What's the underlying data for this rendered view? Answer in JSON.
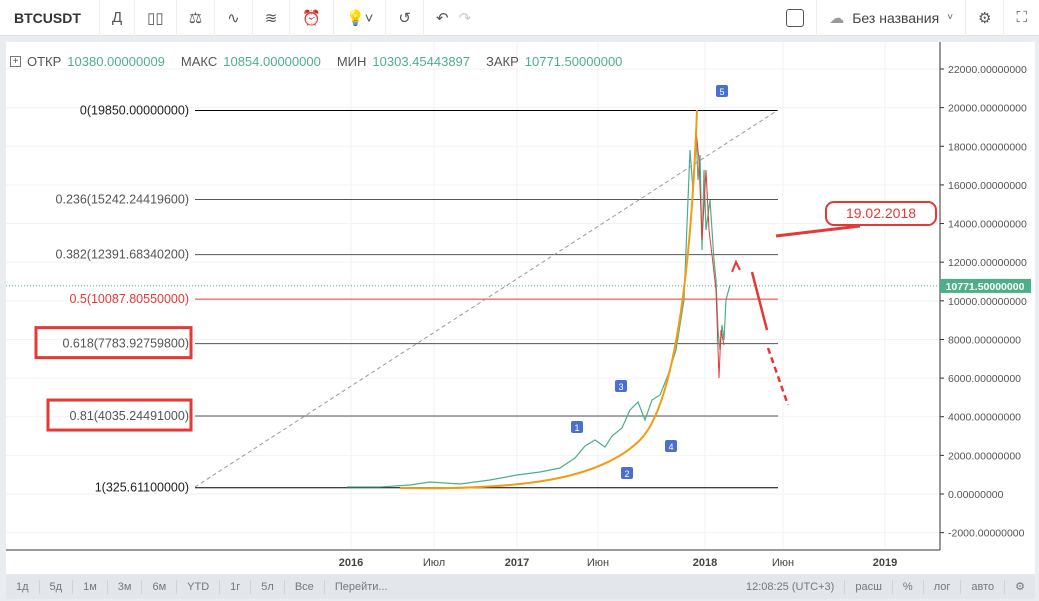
{
  "toolbar": {
    "symbol": "BTCUSDT",
    "interval": "Д",
    "layout_name": "Без названия",
    "icons": [
      "candles-icon",
      "indicators-icon",
      "compare-icon",
      "templates-icon",
      "alert-icon",
      "ideas-icon",
      "replay-icon",
      "undo-icon",
      "redo-icon"
    ]
  },
  "legend": {
    "open_label": "ОТКР",
    "open": "10380.00000009",
    "high_label": "МАКС",
    "high": "10854.00000000",
    "low_label": "МИН",
    "low": "10303.45443897",
    "close_label": "ЗАКР",
    "close": "10771.50000000"
  },
  "price_axis": {
    "ticks": [
      "22000.00000000",
      "20000.00000000",
      "18000.00000000",
      "16000.00000000",
      "14000.00000000",
      "12000.00000000",
      "10000.00000000",
      "8000.00000000",
      "6000.00000000",
      "4000.00000000",
      "2000.00000000",
      "0.00000000",
      "-2000.00000000"
    ],
    "tick_values": [
      22000,
      20000,
      18000,
      16000,
      14000,
      12000,
      10000,
      8000,
      6000,
      4000,
      2000,
      0,
      -2000
    ],
    "last_price": "10771.50000000",
    "last_value": 10771.5
  },
  "time_axis": {
    "ticks": [
      "2016",
      "Июл",
      "2017",
      "Июн",
      "2018",
      "Июн",
      "2019"
    ]
  },
  "fib_levels": [
    {
      "label": "0(19850.00000000)",
      "value": 19850,
      "color": "#000000"
    },
    {
      "label": "0.236(15242.24419600)",
      "value": 15242.24,
      "color": "#555555"
    },
    {
      "label": "0.382(12391.68340200)",
      "value": 12391.68,
      "color": "#555555"
    },
    {
      "label": "0.5(10087.80550000)",
      "value": 10087.8,
      "color": "#e53935"
    },
    {
      "label": "0.618(7783.92759800)",
      "value": 7783.93,
      "color": "#555555",
      "boxed": true
    },
    {
      "label": "0.81(4035.24491000)",
      "value": 4035.24,
      "color": "#555555",
      "boxed": true
    },
    {
      "label": "1(325.61100000)",
      "value": 325.61,
      "color": "#000000"
    }
  ],
  "annotations": {
    "date_callout": "19.02.2018",
    "waves": [
      "1",
      "2",
      "3",
      "4",
      "5"
    ]
  },
  "bottom_bar": {
    "ranges": [
      "1д",
      "5д",
      "1м",
      "3м",
      "6м",
      "YTD",
      "1г",
      "5л",
      "Все",
      "Перейти..."
    ],
    "clock": "12:08:25 (UTC+3)",
    "options": [
      "расш",
      "%",
      "лог",
      "авто"
    ]
  },
  "colors": {
    "accent_red": "#e53935",
    "curve": "#f39c12",
    "up": "#4caf8a",
    "wave_badge": "#4a6fd1"
  }
}
